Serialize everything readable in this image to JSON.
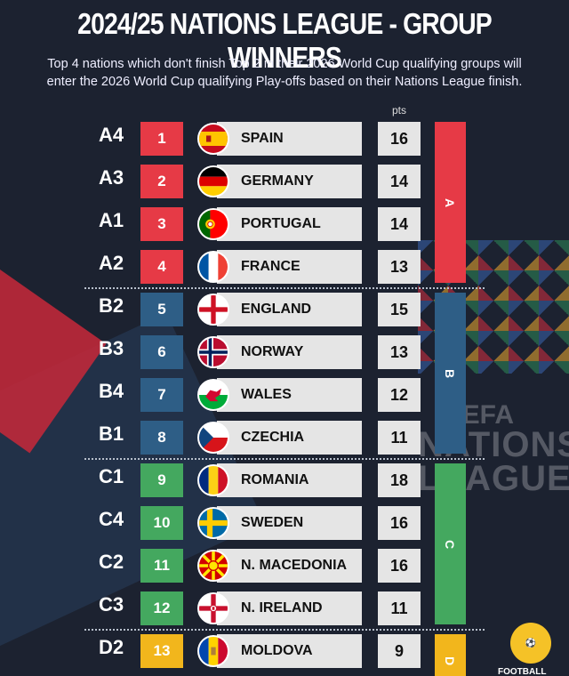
{
  "title": "2024/25 NATIONS LEAGUE - GROUP WINNERS",
  "subtitle_lines": [
    "Top 4 nations which don't finish Top 2 in their 2026 World Cup qualifying groups will",
    "enter the 2026 World Cup qualifying Play-offs based on their Nations League finish."
  ],
  "pts_header": "pts",
  "watermark": {
    "line1": "UEFA",
    "line2": "NATIONS",
    "line3": "LEAGUE"
  },
  "league_bars": {
    "A": "A",
    "B": "B",
    "C": "C",
    "D": "D"
  },
  "colors": {
    "A": "#e63a46",
    "B": "#2e5e86",
    "C": "#44a85f",
    "D": "#f2b61c"
  },
  "rows": [
    {
      "code": "A4",
      "rank": "1",
      "team": "SPAIN",
      "pts": "16",
      "league": "A",
      "flag": "spain-flag-icon"
    },
    {
      "code": "A3",
      "rank": "2",
      "team": "GERMANY",
      "pts": "14",
      "league": "A",
      "flag": "germany-flag-icon"
    },
    {
      "code": "A1",
      "rank": "3",
      "team": "PORTUGAL",
      "pts": "14",
      "league": "A",
      "flag": "portugal-flag-icon"
    },
    {
      "code": "A2",
      "rank": "4",
      "team": "FRANCE",
      "pts": "13",
      "league": "A",
      "flag": "france-flag-icon"
    },
    {
      "code": "B2",
      "rank": "5",
      "team": "ENGLAND",
      "pts": "15",
      "league": "B",
      "flag": "england-flag-icon"
    },
    {
      "code": "B3",
      "rank": "6",
      "team": "NORWAY",
      "pts": "13",
      "league": "B",
      "flag": "norway-flag-icon"
    },
    {
      "code": "B4",
      "rank": "7",
      "team": "WALES",
      "pts": "12",
      "league": "B",
      "flag": "wales-flag-icon"
    },
    {
      "code": "B1",
      "rank": "8",
      "team": "CZECHIA",
      "pts": "11",
      "league": "B",
      "flag": "czechia-flag-icon"
    },
    {
      "code": "C1",
      "rank": "9",
      "team": "ROMANIA",
      "pts": "18",
      "league": "C",
      "flag": "romania-flag-icon"
    },
    {
      "code": "C4",
      "rank": "10",
      "team": "SWEDEN",
      "pts": "16",
      "league": "C",
      "flag": "sweden-flag-icon"
    },
    {
      "code": "C2",
      "rank": "11",
      "team": "N. MACEDONIA",
      "pts": "16",
      "league": "C",
      "flag": "north-macedonia-flag-icon"
    },
    {
      "code": "C3",
      "rank": "12",
      "team": "N. IRELAND",
      "pts": "11",
      "league": "C",
      "flag": "northern-ireland-flag-icon"
    },
    {
      "code": "D2",
      "rank": "13",
      "team": "MOLDOVA",
      "pts": "9",
      "league": "D",
      "flag": "moldova-flag-icon"
    }
  ],
  "brand_text": "FOOTBALL"
}
